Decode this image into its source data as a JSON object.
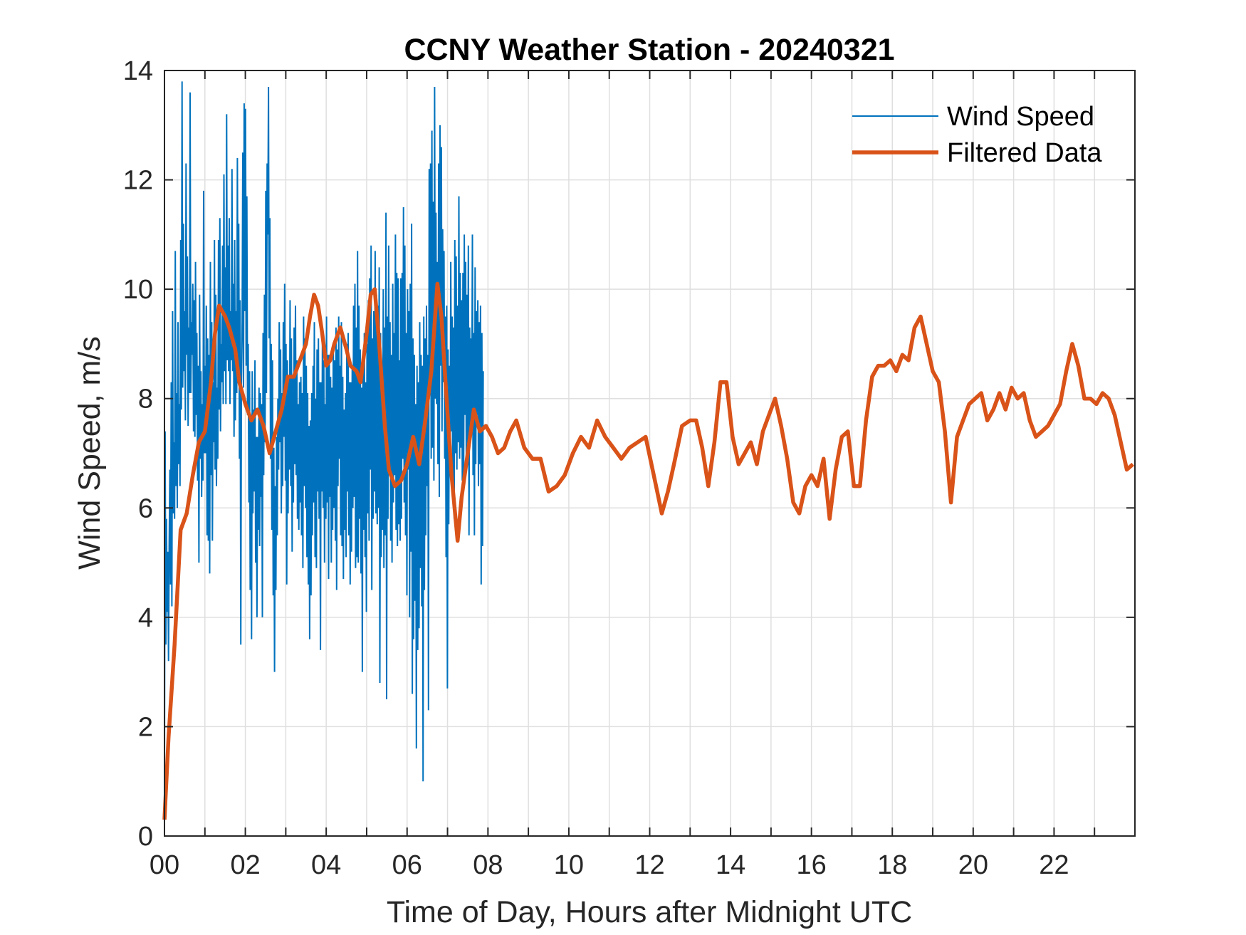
{
  "chart_data": {
    "type": "line",
    "title": "CCNY Weather Station - 20240321",
    "xlabel": "Time of Day, Hours after Midnight UTC",
    "ylabel": "Wind Speed, m/s",
    "xlim": [
      0,
      24
    ],
    "ylim": [
      0,
      14
    ],
    "grid": true,
    "legend_position": "top-right",
    "x_ticks": [
      0,
      2,
      4,
      6,
      8,
      10,
      12,
      14,
      16,
      18,
      20,
      22
    ],
    "x_tick_labels": [
      "00",
      "02",
      "04",
      "06",
      "08",
      "10",
      "12",
      "14",
      "16",
      "18",
      "20",
      "22"
    ],
    "y_ticks": [
      0,
      2,
      4,
      6,
      8,
      10,
      12,
      14
    ],
    "y_tick_labels": [
      "0",
      "2",
      "4",
      "6",
      "8",
      "10",
      "12",
      "14"
    ],
    "filtered_series_name": "Filtered Data",
    "filtered_series_color": "#D95319",
    "filtered_x": [
      0.0,
      0.1,
      0.25,
      0.4,
      0.55,
      0.7,
      0.85,
      1.0,
      1.15,
      1.25,
      1.35,
      1.5,
      1.6,
      1.75,
      1.85,
      2.0,
      2.15,
      2.3,
      2.45,
      2.6,
      2.75,
      2.9,
      3.05,
      3.2,
      3.35,
      3.5,
      3.6,
      3.7,
      3.8,
      3.9,
      4.0,
      4.1,
      4.2,
      4.35,
      4.5,
      4.6,
      4.75,
      4.85,
      5.0,
      5.1,
      5.2,
      5.3,
      5.45,
      5.55,
      5.7,
      5.85,
      6.0,
      6.15,
      6.3,
      6.45,
      6.6,
      6.75,
      6.85,
      6.95,
      7.1,
      7.25,
      7.35,
      7.5,
      7.65,
      7.8,
      7.95,
      8.1,
      8.25,
      8.4,
      8.55,
      8.7,
      8.9,
      9.1,
      9.3,
      9.5,
      9.7,
      9.9,
      10.1,
      10.3,
      10.5,
      10.7,
      10.9,
      11.1,
      11.3,
      11.5,
      11.7,
      11.9,
      12.1,
      12.3,
      12.45,
      12.6,
      12.8,
      13.0,
      13.15,
      13.3,
      13.45,
      13.6,
      13.75,
      13.9,
      14.05,
      14.2,
      14.35,
      14.5,
      14.65,
      14.8,
      14.95,
      15.1,
      15.25,
      15.4,
      15.55,
      15.7,
      15.85,
      16.0,
      16.15,
      16.3,
      16.45,
      16.6,
      16.75,
      16.9,
      17.05,
      17.2,
      17.35,
      17.5,
      17.65,
      17.8,
      17.95,
      18.1,
      18.25,
      18.4,
      18.55,
      18.7,
      18.85,
      19.0,
      19.15,
      19.3,
      19.45,
      19.6,
      19.75,
      19.9,
      20.05,
      20.2,
      20.35,
      20.5,
      20.65,
      20.8,
      20.95,
      21.1,
      21.25,
      21.4,
      21.55,
      21.7,
      21.85,
      22.0,
      22.15,
      22.3,
      22.45,
      22.6,
      22.75,
      22.9,
      23.05,
      23.2,
      23.35,
      23.5,
      23.65,
      23.8,
      23.95
    ],
    "filtered_values": [
      0.3,
      1.8,
      3.5,
      5.6,
      5.9,
      6.6,
      7.2,
      7.4,
      8.3,
      9.2,
      9.7,
      9.5,
      9.3,
      8.9,
      8.3,
      7.9,
      7.6,
      7.8,
      7.5,
      7.0,
      7.4,
      7.8,
      8.4,
      8.4,
      8.7,
      9.0,
      9.5,
      9.9,
      9.7,
      9.2,
      8.6,
      8.7,
      9.0,
      9.3,
      8.9,
      8.6,
      8.5,
      8.3,
      9.2,
      9.9,
      10.0,
      9.1,
      7.5,
      6.7,
      6.4,
      6.5,
      6.8,
      7.3,
      6.8,
      7.6,
      8.5,
      10.1,
      9.5,
      8.3,
      6.6,
      5.4,
      6.2,
      7.0,
      7.8,
      7.4,
      7.5,
      7.3,
      7.0,
      7.1,
      7.4,
      7.6,
      7.1,
      6.9,
      6.9,
      6.3,
      6.4,
      6.6,
      7.0,
      7.3,
      7.1,
      7.6,
      7.3,
      7.1,
      6.9,
      7.1,
      7.2,
      7.3,
      6.6,
      5.9,
      6.3,
      6.8,
      7.5,
      7.6,
      7.6,
      7.1,
      6.4,
      7.2,
      8.3,
      8.3,
      7.3,
      6.8,
      7.0,
      7.2,
      6.8,
      7.4,
      7.7,
      8.0,
      7.5,
      6.9,
      6.1,
      5.9,
      6.4,
      6.6,
      6.4,
      6.9,
      5.8,
      6.7,
      7.3,
      7.4,
      6.4,
      6.4,
      7.6,
      8.4,
      8.6,
      8.6,
      8.7,
      8.5,
      8.8,
      8.7,
      9.3,
      9.5,
      9.0,
      8.5,
      8.3,
      7.4,
      6.1,
      7.3,
      7.6,
      7.9,
      8.0,
      8.1,
      7.6,
      7.8,
      8.1,
      7.8,
      8.2,
      8.0,
      8.1,
      7.6,
      7.3,
      7.4,
      7.5,
      7.7,
      7.9,
      8.5,
      9.0,
      8.6,
      8.0,
      8.0,
      7.9,
      8.1,
      8.0,
      7.7,
      7.2,
      6.7,
      6.8
    ],
    "raw_series_name": "Wind Speed",
    "raw_series_color": "#0072BD",
    "raw_x_start": 0.0,
    "raw_x_step": 0.0167,
    "raw_values": [
      1.2,
      7.4,
      3.5,
      5.8,
      4.1,
      5.2,
      3.2,
      5.3,
      6.7,
      4.6,
      8.3,
      4.2,
      9.6,
      5.9,
      7.2,
      5.8,
      10.7,
      6.4,
      8.1,
      6.0,
      9.4,
      6.8,
      7.9,
      6.4,
      10.9,
      7.8,
      13.8,
      8.2,
      11.2,
      8.5,
      9.6,
      7.6,
      12.3,
      8.8,
      10.6,
      7.5,
      9.3,
      8.1,
      13.6,
      8.1,
      9.4,
      8.8,
      10.1,
      7.4,
      9.8,
      7.3,
      10.5,
      7.7,
      9.2,
      6.5,
      8.6,
      5.0,
      9.9,
      6.9,
      8.5,
      6.2,
      7.9,
      6.5,
      11.8,
      7.0,
      8.6,
      7.0,
      9.7,
      5.5,
      9.1,
      5.4,
      8.8,
      4.8,
      10.5,
      6.6,
      9.4,
      5.4,
      8.3,
      7.2,
      10.9,
      6.7,
      9.9,
      6.4,
      8.2,
      6.9,
      10.9,
      7.8,
      11.3,
      7.4,
      9.0,
      8.3,
      10.8,
      7.9,
      12.1,
      8.5,
      10.4,
      7.9,
      13.2,
      8.7,
      10.8,
      8.5,
      11.3,
      7.9,
      9.6,
      8.7,
      12.2,
      8.5,
      10.1,
      7.3,
      10.9,
      7.6,
      9.6,
      8.1,
      12.4,
      8.7,
      11.2,
      6.9,
      9.8,
      3.5,
      8.3,
      9.4,
      12.5,
      8.2,
      13.4,
      9.6,
      13.3,
      8.6,
      11.7,
      7.7,
      9.0,
      6.1,
      8.5,
      4.5,
      7.7,
      3.6,
      8.5,
      5.9,
      7.8,
      6.3,
      8.7,
      5.0,
      7.3,
      4.0,
      7.3,
      5.6,
      8.2,
      5.3,
      8.1,
      6.2,
      7.9,
      4.0,
      9.2,
      6.6,
      9.9,
      7.2,
      11.8,
      8.1,
      12.3,
      11.0,
      13.7,
      9.1,
      11.3,
      6.9,
      9.0,
      5.6,
      8.7,
      4.4,
      7.1,
      3.0,
      6.4,
      4.5,
      7.3,
      5.5,
      8.0,
      6.7,
      9.4,
      7.2,
      8.9,
      5.9,
      8.1,
      6.4,
      9.4,
      7.3,
      10.1,
      6.5,
      9.0,
      4.6,
      8.7,
      5.9,
      8.4,
      6.7,
      9.8,
      6.4,
      9.1,
      5.2,
      8.4,
      6.1,
      9.3,
      6.8,
      9.7,
      6.6,
      8.7,
      5.8,
      7.9,
      5.6,
      8.3,
      6.1,
      8.4,
      5.5,
      8.1,
      4.9,
      9.5,
      6.4,
      9.1,
      6.0,
      8.6,
      5.1,
      8.1,
      4.6,
      7.5,
      3.6,
      7.6,
      4.4,
      8.1,
      5.5,
      8.6,
      6.1,
      9.4,
      5.1,
      8.0,
      4.9,
      8.9,
      6.3,
      9.1,
      5.8,
      8.3,
      3.4,
      8.3,
      6.3,
      9.2,
      6.0,
      8.7,
      5.0,
      7.9,
      5.8,
      9.5,
      6.1,
      8.8,
      4.7,
      8.8,
      6.2,
      8.4,
      5.0,
      8.2,
      5.6,
      9.0,
      6.0,
      8.7,
      5.4,
      9.3,
      4.5,
      8.9,
      6.4,
      9.5,
      6.9,
      8.6,
      5.5,
      9.4,
      5.3,
      8.4,
      4.7,
      7.8,
      5.6,
      8.1,
      5.1,
      9.0,
      6.3,
      9.2,
      5.5,
      8.3,
      4.6,
      8.3,
      5.2,
      8.6,
      6.0,
      9.7,
      6.2,
      10.1,
      4.9,
      9.3,
      5.1,
      10.7,
      5.0,
      9.7,
      5.8,
      8.9,
      4.8,
      8.2,
      3.0,
      8.8,
      5.6,
      9.2,
      5.1,
      8.3,
      4.1,
      9.0,
      5.9,
      9.8,
      5.4,
      10.2,
      6.7,
      10.8,
      4.5,
      9.1,
      5.8,
      9.6,
      6.3,
      10.7,
      5.9,
      9.9,
      5.7,
      9.7,
      6.0,
      10.4,
      2.8,
      9.2,
      5.1,
      8.4,
      5.6,
      10.0,
      4.9,
      9.3,
      5.5,
      11.4,
      2.5,
      9.5,
      5.8,
      10.8,
      6.6,
      9.4,
      5.4,
      8.8,
      5.0,
      10.1,
      6.1,
      9.2,
      6.6,
      11.0,
      5.6,
      10.3,
      5.3,
      10.2,
      5.7,
      8.7,
      5.4,
      10.2,
      5.8,
      10.3,
      6.9,
      11.5,
      6.1,
      10.8,
      5.5,
      9.2,
      4.4,
      10.0,
      6.7,
      9.6,
      4.0,
      10.1,
      5.2,
      11.2,
      2.6,
      9.1,
      3.6,
      8.8,
      4.3,
      7.9,
      1.6,
      8.6,
      3.4,
      8.3,
      3.8,
      9.4,
      4.9,
      8.8,
      4.2,
      8.6,
      1.0,
      9.5,
      4.5,
      9.1,
      5.5,
      9.7,
      6.4,
      8.8,
      2.3,
      12.2,
      8.4,
      12.3,
      6.9,
      12.9,
      7.1,
      11.6,
      6.5,
      13.7,
      8.0,
      11.4,
      7.9,
      10.5,
      6.8,
      12.3,
      6.2,
      13.0,
      8.6,
      12.6,
      7.4,
      11.1,
      8.3,
      10.7,
      6.9,
      9.5,
      5.1,
      9.7,
      2.7,
      8.9,
      5.7,
      8.6,
      6.6,
      10.5,
      7.4,
      9.5,
      6.1,
      9.3,
      5.8,
      10.9,
      7.0,
      10.6,
      6.7,
      9.7,
      7.2,
      11.7,
      6.9,
      10.3,
      7.1,
      9.8,
      6.5,
      10.3,
      6.6,
      11.0,
      7.7,
      10.5,
      6.9,
      9.9,
      6.8,
      10.8,
      5.5,
      9.3,
      7.3,
      9.1,
      7.4,
      11.0,
      6.6,
      9.2,
      5.5,
      10.4,
      6.8,
      9.6,
      7.7,
      9.8,
      6.4,
      9.4,
      6.8,
      9.7,
      4.6,
      9.2,
      5.3,
      8.5
    ]
  }
}
